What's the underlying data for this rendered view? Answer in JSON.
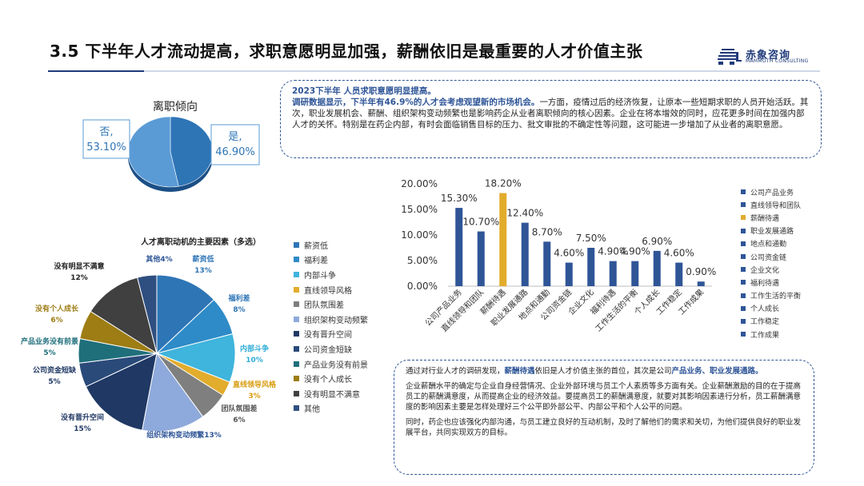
{
  "header": {
    "title": "3.5 下半年人才流动提高，求职意愿明显加强，薪酬依旧是最重要的人才价值主张",
    "logo_cn": "赤象咨询",
    "logo_en": "MAMMOTH CONSULTING"
  },
  "box1": {
    "line1": "2023下半年 人员求职意愿明显提高。",
    "highlight": "调研数据显示，下半年有46.9%的人才会考虑观望新的市场机会。",
    "rest": "一方面，疫情过后的经济恢复，让原本一些短期求职的人员开始活跃。其次，职业发展机会、薪酬、组织架构变动频繁也是影响药企从业者离职倾向的核心因素。企业在将本增效的同时，应花更多时间在加强内部人才的关怀。特别是在药企内部，有时会面临销售目标的压力、批文审批的不确定性等问题，这可能进一步增加了从业者的离职意愿。"
  },
  "box2": {
    "p1_a": "通过对行业人才的调研发现，",
    "p1_b": "薪酬待遇",
    "p1_c": "依旧是人才价值主张的首位，其次是公司",
    "p1_d": "产品业务、职业发展通路。",
    "p2": "企业薪酬水平的确定与企业自身经营情况、企业外部环境与员工个人素质等多方面有关。企业薪酬激励的目的在于提高员工的薪酬满意度，从而提高企业的经济效益。要提高员工的薪酬满意度，就要对其影响因素进行分析，员工薪酬满意度的影响因素主要是怎样处理好三个公平即外部公平、内部公平和个人公平的问题。",
    "p3": "同时，药企也应该强化内部沟通，与员工建立良好的互动机制，及时了解他们的需求和关切，为他们提供良好的职业发展平台，共同实现双方的目标。"
  },
  "colors": {
    "dark_navy": "#1f3864",
    "mid_blue": "#2e75b6",
    "light_blue": "#40b4d8",
    "gold": "#e2ac2c",
    "gray": "#808080",
    "periwinkle": "#8ea9db",
    "teal": "#1f6f7b",
    "olive": "#9d7d14",
    "dark_gray": "#3f3f3f",
    "bar_blue": "#2f5597"
  },
  "chart_data": [
    {
      "type": "pie",
      "title": "离职倾向",
      "categories": [
        "是",
        "否"
      ],
      "values": [
        46.9,
        53.1
      ],
      "data_labels": [
        "是,\n46.90%",
        "否,\n53.10%"
      ]
    },
    {
      "type": "pie",
      "title": "人才离职动机的主要因素（多选）",
      "categories": [
        "薪资低",
        "福利差",
        "内部斗争",
        "直线领导风格",
        "团队氛围差",
        "组织架构变动频繁",
        "没有晋升空间",
        "公司资金短缺",
        "产品业务没有前景",
        "没有个人成长",
        "没有明显不满意",
        "其他"
      ],
      "values": [
        13,
        8,
        10,
        3,
        6,
        13,
        15,
        5,
        5,
        6,
        12,
        4
      ],
      "data_labels": [
        "薪资低\n13%",
        "福利差\n8%",
        "内部斗争\n10%",
        "直线领导风格\n3%",
        "团队氛围差\n6%",
        "组织架构变动频繁13%",
        "没有晋升空间\n15%",
        "公司资金短缺\n5%",
        "产品业务没有前景\n5%",
        "没有个人成长\n6%",
        "没有明显不满意\n12%",
        "其他4%"
      ]
    },
    {
      "type": "bar",
      "title": "",
      "categories": [
        "公司产品业务",
        "直线领导和团队",
        "薪酬待遇",
        "职业发展通路",
        "地点和通勤",
        "公司资金链",
        "企业文化",
        "福利待遇",
        "工作生活的平衡",
        "个人成长",
        "工作稳定",
        "工作成果"
      ],
      "values": [
        15.3,
        10.7,
        18.2,
        12.4,
        8.7,
        4.6,
        7.5,
        4.9,
        4.9,
        6.9,
        4.6,
        0.9
      ],
      "value_labels": [
        "15.30%",
        "10.70%",
        "18.20%",
        "12.40%",
        "8.70%",
        "4.60%",
        "7.50%",
        "4.90%",
        "4.90%",
        "6.90%",
        "4.60%",
        "0.90%"
      ],
      "y_ticks": [
        "0.00%",
        "5.00%",
        "10.00%",
        "15.00%",
        "20.00%"
      ],
      "ylim": [
        0,
        20
      ],
      "highlight_index": 2
    }
  ]
}
